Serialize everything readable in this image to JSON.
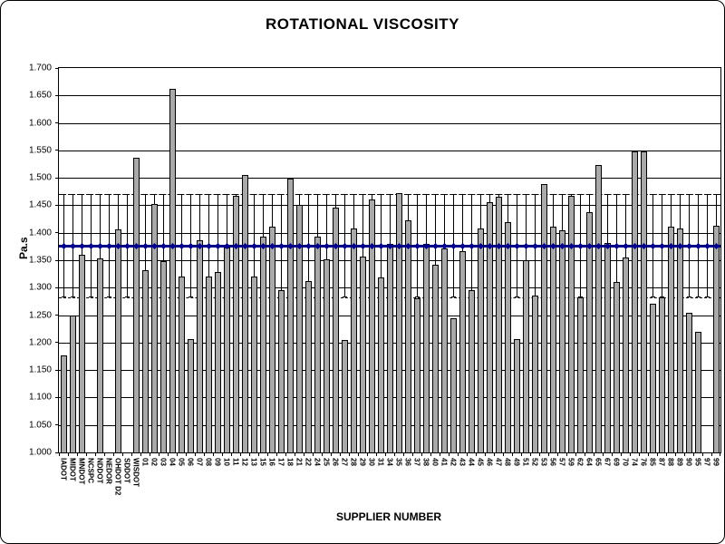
{
  "title": "ROTATIONAL VISCOSITY",
  "x_axis_title": "SUPPLIER NUMBER",
  "y_axis_title": "Pa.s",
  "chart_data": {
    "type": "bar",
    "title": "ROTATIONAL VISCOSITY",
    "xlabel": "SUPPLIER NUMBER",
    "ylabel": "Pa.s",
    "ylim": [
      1.0,
      1.7
    ],
    "ytick_step": 0.05,
    "ytick_labels": [
      "1.000",
      "1.050",
      "1.100",
      "1.150",
      "1.200",
      "1.250",
      "1.300",
      "1.350",
      "1.400",
      "1.450",
      "1.500",
      "1.550",
      "1.600",
      "1.650",
      "1.700"
    ],
    "grid": true,
    "legend": "none",
    "categories": [
      "IADOT",
      "MIDOT",
      "MNDOT",
      "NCSPC",
      "NDDOT",
      "NEDOR",
      "OHDOT D2",
      "SDDOT",
      "WISDOT",
      "01",
      "02",
      "03",
      "04",
      "05",
      "06",
      "07",
      "08",
      "09",
      "10",
      "11",
      "12",
      "13",
      "15",
      "16",
      "17",
      "18",
      "21",
      "22",
      "24",
      "25",
      "26",
      "27",
      "28",
      "29",
      "30",
      "31",
      "34",
      "35",
      "36",
      "37",
      "38",
      "40",
      "41",
      "42",
      "43",
      "44",
      "45",
      "46",
      "47",
      "48",
      "49",
      "51",
      "52",
      "53",
      "56",
      "57",
      "59",
      "62",
      "64",
      "65",
      "67",
      "69",
      "70",
      "74",
      "76",
      "85",
      "87",
      "88",
      "89",
      "90",
      "95",
      "97",
      "99"
    ],
    "values": [
      1.176,
      1.249,
      1.36,
      null,
      1.353,
      null,
      1.406,
      null,
      1.536,
      1.332,
      1.452,
      1.348,
      1.662,
      1.32,
      1.207,
      1.386,
      1.32,
      1.329,
      1.373,
      1.467,
      1.506,
      1.32,
      1.393,
      1.411,
      1.296,
      1.499,
      1.451,
      1.312,
      1.393,
      1.351,
      1.445,
      1.205,
      1.408,
      1.356,
      1.46,
      1.318,
      1.38,
      1.472,
      1.422,
      1.281,
      1.379,
      1.342,
      1.371,
      1.245,
      1.367,
      1.295,
      1.407,
      1.456,
      1.466,
      1.42,
      1.207,
      1.35,
      1.285,
      1.488,
      1.411,
      1.404,
      1.468,
      1.283,
      1.438,
      1.524,
      1.381,
      1.31,
      1.355,
      1.548,
      1.548,
      1.27,
      1.283,
      1.411,
      1.408,
      1.255,
      1.219,
      null,
      1.413
    ],
    "mean_line": 1.375,
    "upper_limit": 1.47,
    "lower_limit": 1.282,
    "colors": {
      "bar_fill": "#a9a9a9",
      "bar_border": "#000000",
      "mean_line": "#00008b",
      "limit_lines": "#000000",
      "gridlines": "#000000"
    }
  }
}
